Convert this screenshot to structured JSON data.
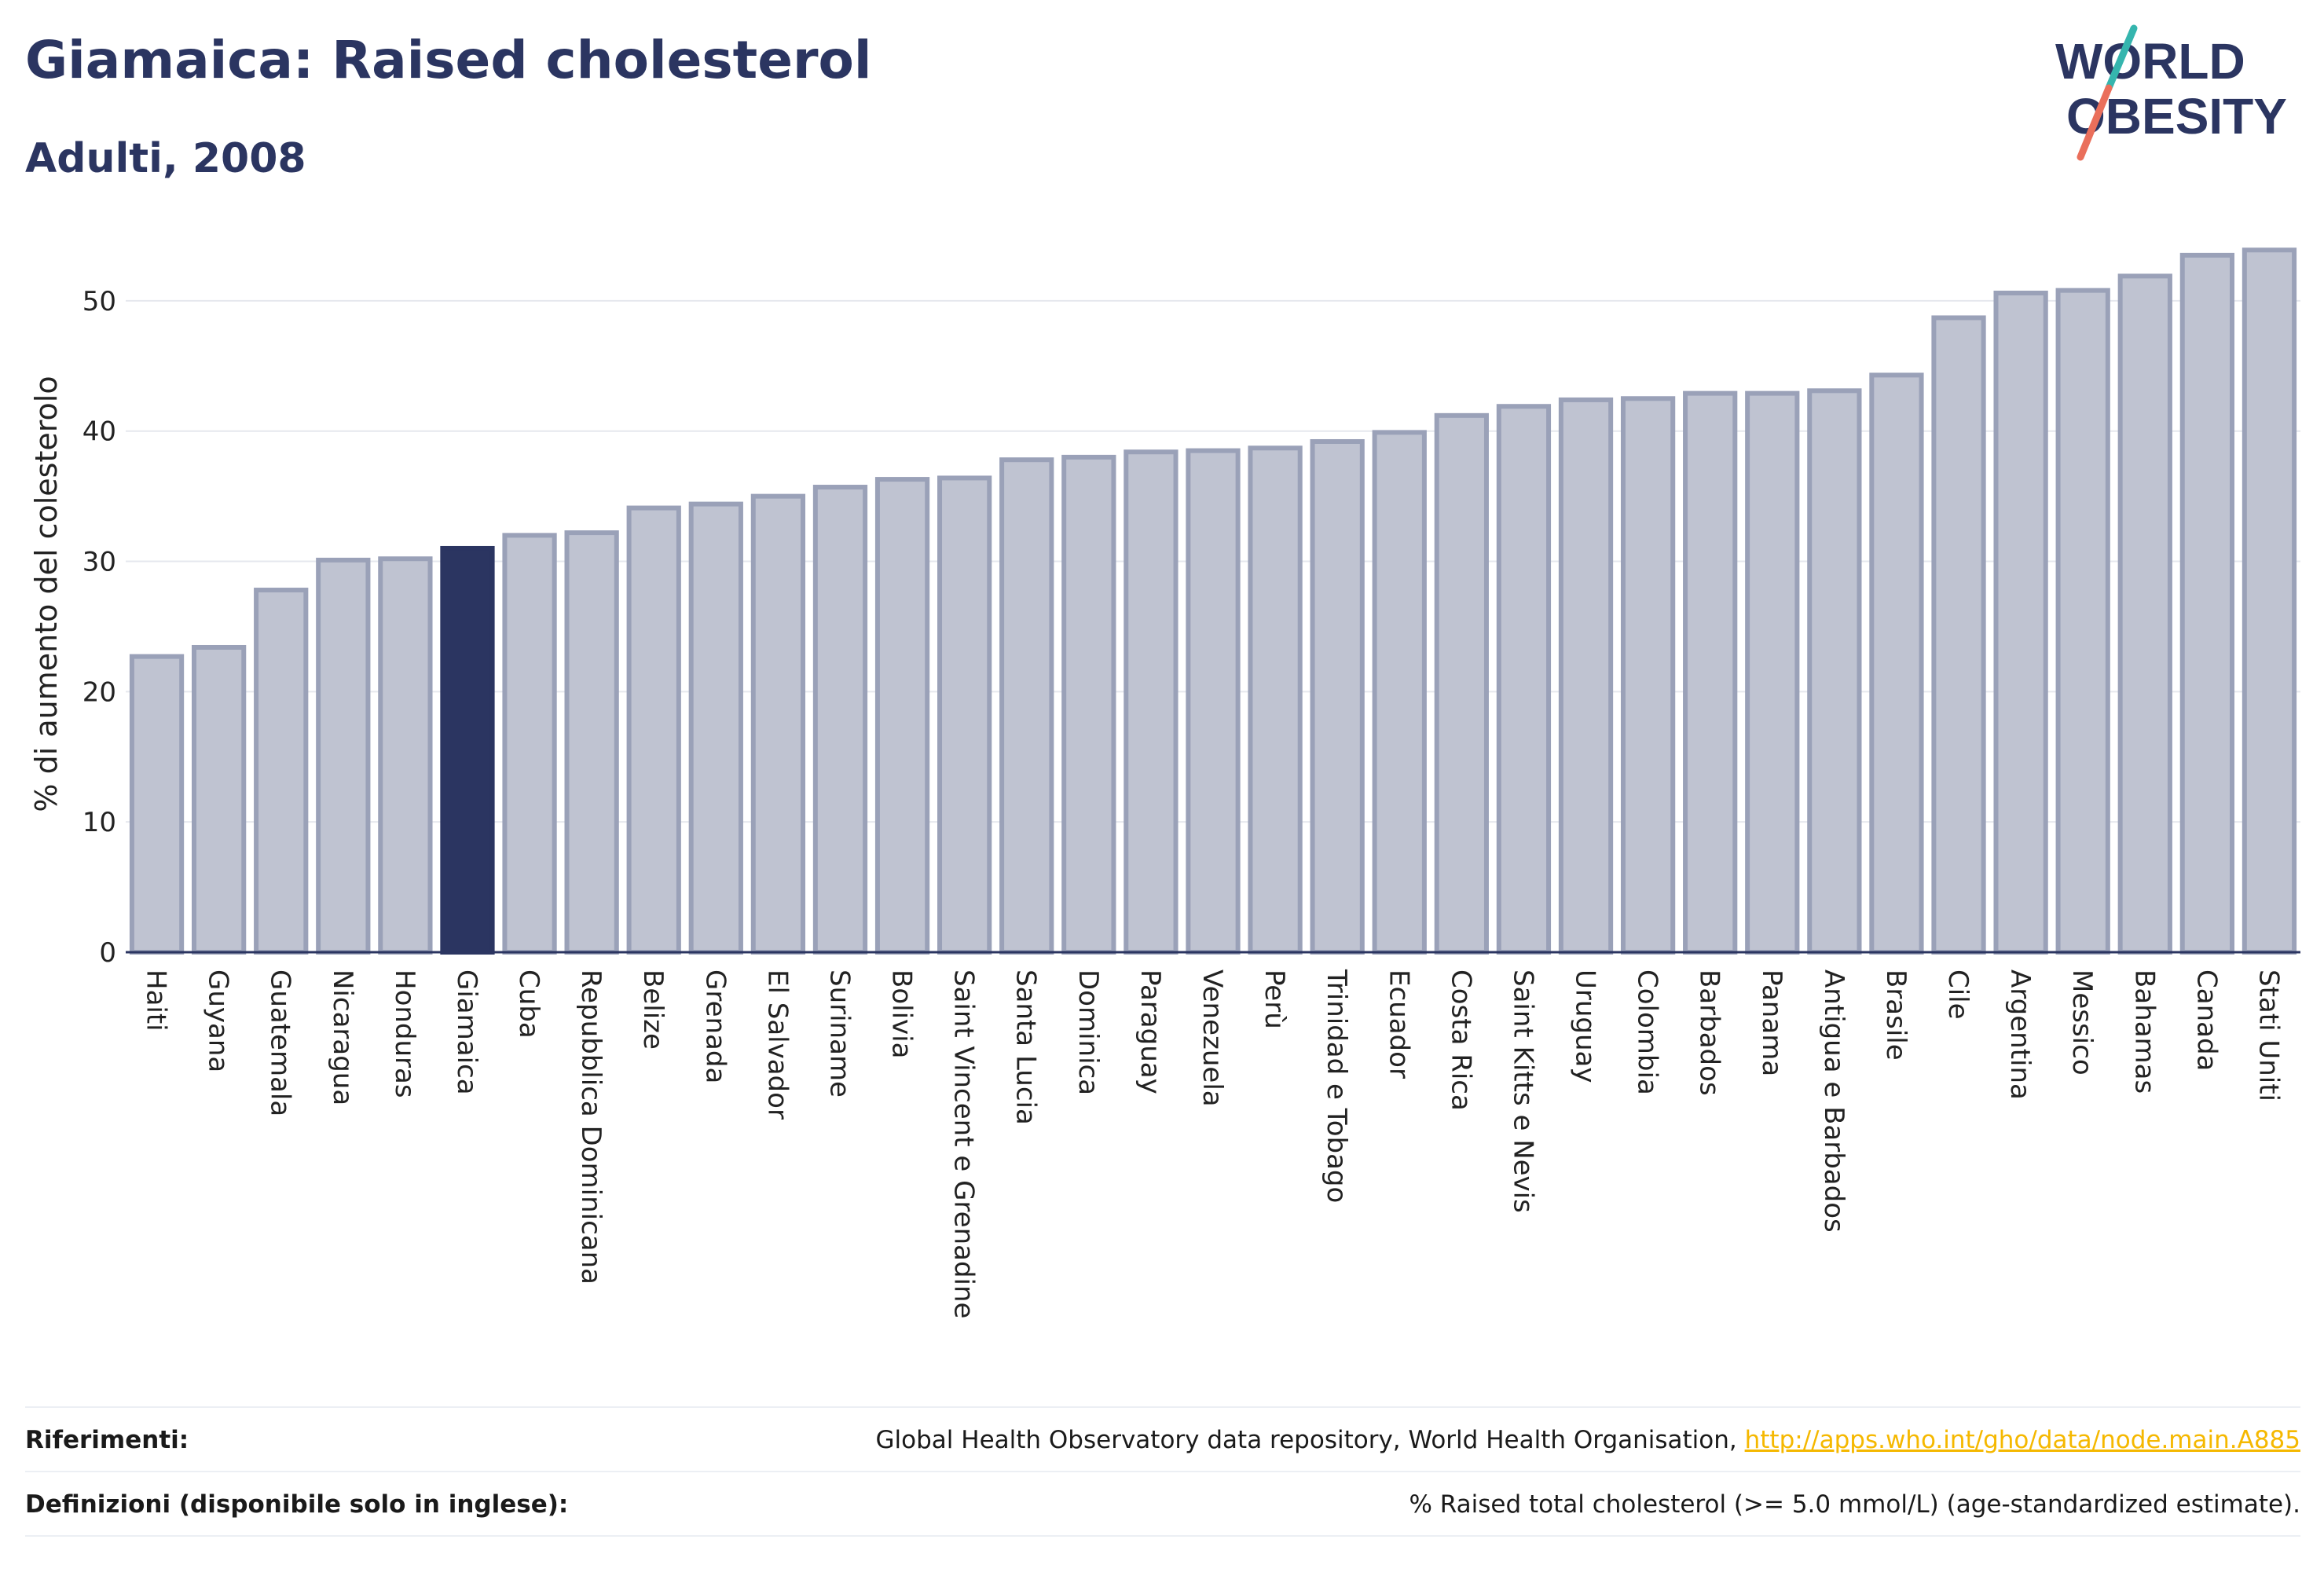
{
  "header": {
    "title": "Giamaica: Raised cholesterol",
    "subtitle": "Adulti, 2008",
    "logo_line1": "WORLD",
    "logo_line2": "OBESITY"
  },
  "colors": {
    "bar_fill": "#bfc3d1",
    "bar_stroke": "#9aa1b8",
    "highlight_fill": "#2b3561",
    "text": "#2b3561",
    "link": "#f5b800",
    "logo_teal": "#35b5ae",
    "logo_coral": "#ea6f5b"
  },
  "chart_data": {
    "type": "bar",
    "ylabel": "% di aumento del colesterolo",
    "ylim": [
      0,
      55
    ],
    "yticks": [
      0,
      10,
      20,
      30,
      40,
      50
    ],
    "grid": true,
    "highlight": "Giamaica",
    "categories": [
      "Haiti",
      "Guyana",
      "Guatemala",
      "Nicaragua",
      "Honduras",
      "Giamaica",
      "Cuba",
      "Repubblica Dominicana",
      "Belize",
      "Grenada",
      "El Salvador",
      "Suriname",
      "Bolivia",
      "Saint Vincent e Grenadine",
      "Santa Lucia",
      "Dominica",
      "Paraguay",
      "Venezuela",
      "Perù",
      "Trinidad e Tobago",
      "Ecuador",
      "Costa Rica",
      "Saint Kitts e Nevis",
      "Uruguay",
      "Colombia",
      "Barbados",
      "Panama",
      "Antigua e Barbados",
      "Brasile",
      "Cile",
      "Argentina",
      "Messico",
      "Bahamas",
      "Canada",
      "Stati Uniti"
    ],
    "values": [
      22.7,
      23.4,
      27.8,
      30.1,
      30.2,
      31.0,
      32.0,
      32.2,
      34.1,
      34.4,
      35.0,
      35.7,
      36.3,
      36.4,
      37.8,
      38.0,
      38.4,
      38.5,
      38.7,
      39.2,
      39.9,
      41.2,
      41.9,
      42.4,
      42.5,
      42.9,
      42.9,
      43.1,
      44.3,
      48.7,
      50.6,
      50.8,
      51.9,
      53.5,
      53.9
    ]
  },
  "footer": {
    "references_label": "Riferimenti:",
    "references_text": "Global Health Observatory data repository, World Health Organisation, ",
    "references_link": "http://apps.who.int/gho/data/node.main.A885",
    "definitions_label": "Definizioni (disponibile solo in inglese):",
    "definitions_text": "% Raised total cholesterol (>= 5.0 mmol/L) (age-standardized estimate)."
  }
}
